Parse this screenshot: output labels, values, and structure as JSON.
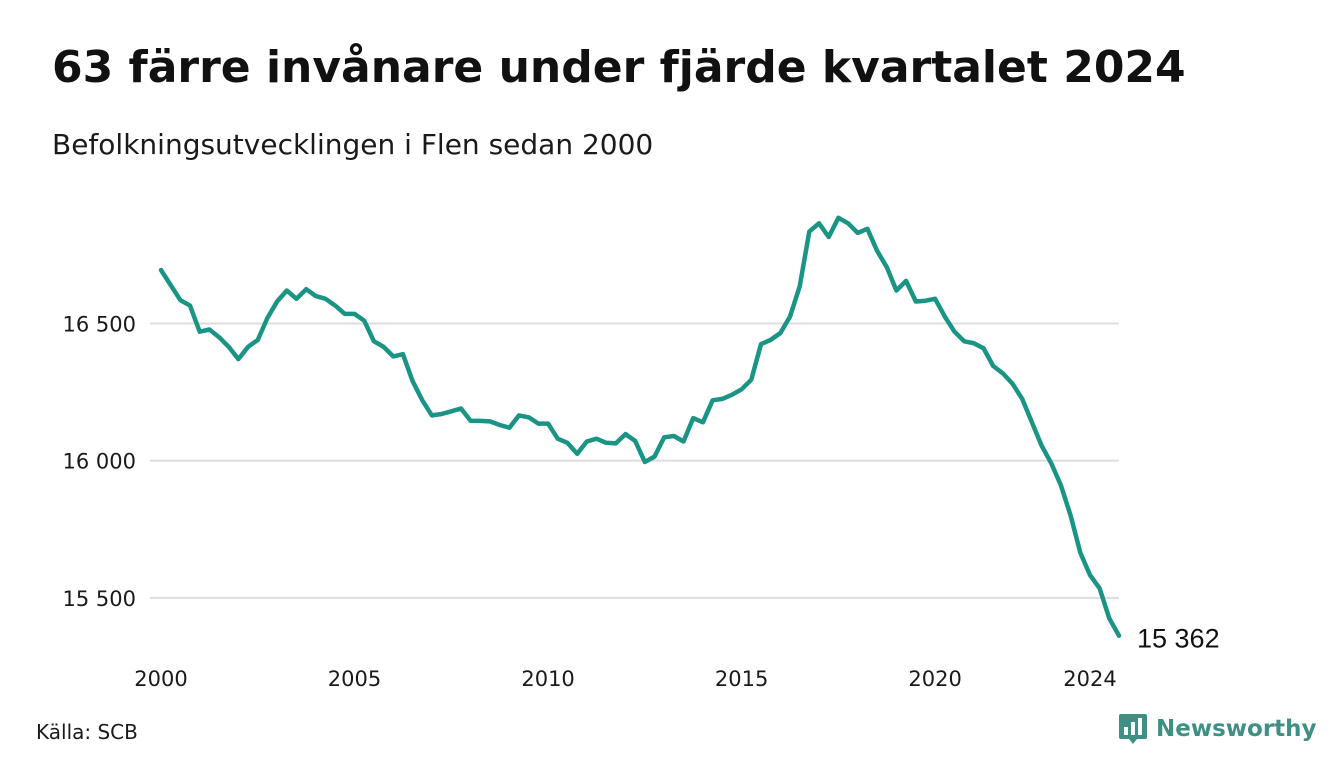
{
  "title": "63 färre invånare under fjärde kvartalet 2024",
  "subtitle": "Befolkningsutvecklingen i Flen sedan 2000",
  "source": "Källa: SCB",
  "brand": {
    "name": "Newsworthy",
    "icon": "newsworthy-logo-icon"
  },
  "colors": {
    "line": "#1a9484",
    "grid": "#dddddd",
    "brand": "#3f8f84"
  },
  "chart_data": {
    "type": "line",
    "title": "63 färre invånare under fjärde kvartalet 2024",
    "subtitle": "Befolkningsutvecklingen i Flen sedan 2000",
    "xlabel": "",
    "ylabel": "",
    "xlim": [
      2000.0,
      2024.75
    ],
    "ylim": [
      15310,
      16950
    ],
    "grid": {
      "horizontal": true,
      "vertical": false
    },
    "x_ticks": [
      {
        "value": 2000,
        "label": "2000"
      },
      {
        "value": 2005,
        "label": "2005"
      },
      {
        "value": 2010,
        "label": "2010"
      },
      {
        "value": 2015,
        "label": "2015"
      },
      {
        "value": 2020,
        "label": "2020"
      },
      {
        "value": 2024,
        "label": "2024"
      }
    ],
    "y_ticks": [
      {
        "value": 15500,
        "label": "15 500"
      },
      {
        "value": 16000,
        "label": "16 000"
      },
      {
        "value": 16500,
        "label": "16 500"
      }
    ],
    "end_label": "15 362",
    "series": [
      {
        "values": [
          [
            2000.0,
            16695
          ],
          [
            2000.25,
            16640
          ],
          [
            2000.5,
            16585
          ],
          [
            2000.75,
            16565
          ],
          [
            2001.0,
            16470
          ],
          [
            2001.25,
            16478
          ],
          [
            2001.5,
            16450
          ],
          [
            2001.75,
            16415
          ],
          [
            2002.0,
            16370
          ],
          [
            2002.25,
            16415
          ],
          [
            2002.5,
            16440
          ],
          [
            2002.75,
            16520
          ],
          [
            2003.0,
            16580
          ],
          [
            2003.25,
            16620
          ],
          [
            2003.5,
            16590
          ],
          [
            2003.75,
            16625
          ],
          [
            2004.0,
            16600
          ],
          [
            2004.25,
            16590
          ],
          [
            2004.5,
            16565
          ],
          [
            2004.75,
            16535
          ],
          [
            2005.0,
            16535
          ],
          [
            2005.25,
            16510
          ],
          [
            2005.5,
            16435
          ],
          [
            2005.75,
            16415
          ],
          [
            2006.0,
            16380
          ],
          [
            2006.25,
            16388
          ],
          [
            2006.5,
            16290
          ],
          [
            2006.75,
            16220
          ],
          [
            2007.0,
            16165
          ],
          [
            2007.25,
            16170
          ],
          [
            2007.5,
            16180
          ],
          [
            2007.75,
            16190
          ],
          [
            2008.0,
            16145
          ],
          [
            2008.25,
            16145
          ],
          [
            2008.5,
            16143
          ],
          [
            2008.75,
            16130
          ],
          [
            2009.0,
            16120
          ],
          [
            2009.25,
            16165
          ],
          [
            2009.5,
            16158
          ],
          [
            2009.75,
            16135
          ],
          [
            2010.0,
            16135
          ],
          [
            2010.25,
            16080
          ],
          [
            2010.5,
            16065
          ],
          [
            2010.75,
            16025
          ],
          [
            2011.0,
            16070
          ],
          [
            2011.25,
            16080
          ],
          [
            2011.5,
            16065
          ],
          [
            2011.75,
            16063
          ],
          [
            2012.0,
            16097
          ],
          [
            2012.25,
            16072
          ],
          [
            2012.5,
            15995
          ],
          [
            2012.75,
            16015
          ],
          [
            2013.0,
            16085
          ],
          [
            2013.25,
            16090
          ],
          [
            2013.5,
            16070
          ],
          [
            2013.75,
            16155
          ],
          [
            2014.0,
            16140
          ],
          [
            2014.25,
            16220
          ],
          [
            2014.5,
            16225
          ],
          [
            2014.75,
            16240
          ],
          [
            2015.0,
            16260
          ],
          [
            2015.25,
            16295
          ],
          [
            2015.5,
            16425
          ],
          [
            2015.75,
            16440
          ],
          [
            2016.0,
            16465
          ],
          [
            2016.25,
            16525
          ],
          [
            2016.5,
            16635
          ],
          [
            2016.75,
            16835
          ],
          [
            2017.0,
            16865
          ],
          [
            2017.25,
            16815
          ],
          [
            2017.5,
            16885
          ],
          [
            2017.75,
            16865
          ],
          [
            2018.0,
            16830
          ],
          [
            2018.25,
            16845
          ],
          [
            2018.5,
            16765
          ],
          [
            2018.75,
            16705
          ],
          [
            2019.0,
            16620
          ],
          [
            2019.25,
            16655
          ],
          [
            2019.5,
            16580
          ],
          [
            2019.75,
            16583
          ],
          [
            2020.0,
            16590
          ],
          [
            2020.25,
            16525
          ],
          [
            2020.5,
            16470
          ],
          [
            2020.75,
            16435
          ],
          [
            2021.0,
            16428
          ],
          [
            2021.25,
            16410
          ],
          [
            2021.5,
            16345
          ],
          [
            2021.75,
            16318
          ],
          [
            2022.0,
            16280
          ],
          [
            2022.25,
            16225
          ],
          [
            2022.5,
            16140
          ],
          [
            2022.75,
            16055
          ],
          [
            2023.0,
            15990
          ],
          [
            2023.25,
            15910
          ],
          [
            2023.5,
            15800
          ],
          [
            2023.75,
            15665
          ],
          [
            2024.0,
            15583
          ],
          [
            2024.25,
            15535
          ],
          [
            2024.5,
            15425
          ],
          [
            2024.75,
            15362
          ]
        ]
      }
    ]
  }
}
